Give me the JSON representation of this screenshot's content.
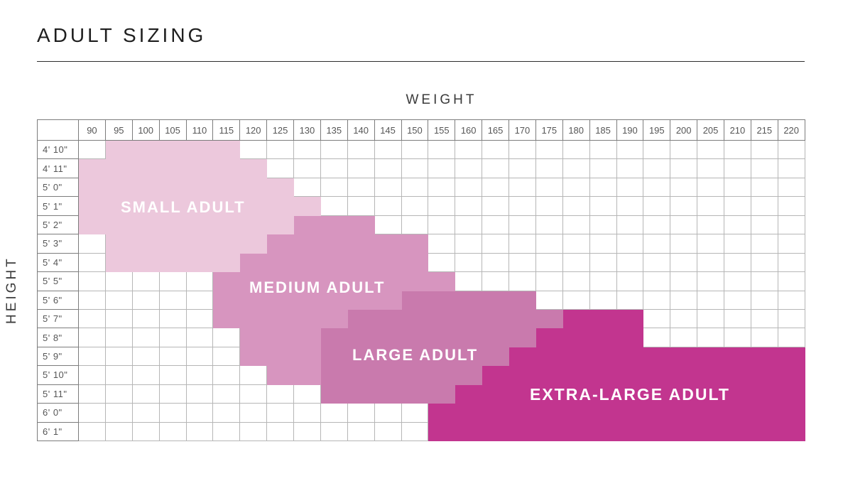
{
  "title": "ADULT SIZING",
  "chart_data": {
    "type": "heatmap",
    "x_axis_label": "WEIGHT",
    "y_axis_label": "HEIGHT",
    "x_categories": [
      90,
      95,
      100,
      105,
      110,
      115,
      120,
      125,
      130,
      135,
      140,
      145,
      150,
      155,
      160,
      165,
      170,
      175,
      180,
      185,
      190,
      195,
      200,
      205,
      210,
      215,
      220
    ],
    "y_categories": [
      "4' 10\"",
      "4' 11\"",
      "5' 0\"",
      "5' 1\"",
      "5' 2\"",
      "5' 3\"",
      "5' 4\"",
      "5' 5\"",
      "5' 6\"",
      "5' 7\"",
      "5' 8\"",
      "5' 9\"",
      "5' 10\"",
      "5' 11\"",
      "6' 0\"",
      "6' 1\""
    ],
    "grid": true,
    "regions": [
      {
        "id": "small",
        "label": "SMALL ADULT",
        "color": "#ecc8dc",
        "cells": {
          "4' 10\"": [
            95,
            115
          ],
          "4' 11\"": [
            90,
            120
          ],
          "5' 0\"": [
            90,
            125
          ],
          "5' 1\"": [
            90,
            130
          ],
          "5' 2\"": [
            90,
            125
          ],
          "5' 3\"": [
            95,
            120
          ],
          "5' 4\"": [
            95,
            115
          ]
        }
      },
      {
        "id": "medium",
        "label": "MEDIUM ADULT",
        "color": "#d795bf",
        "cells": {
          "5' 2\"": [
            130,
            140
          ],
          "5' 3\"": [
            125,
            150
          ],
          "5' 4\"": [
            120,
            150
          ],
          "5' 5\"": [
            115,
            155
          ],
          "5' 6\"": [
            115,
            145
          ],
          "5' 7\"": [
            115,
            135
          ],
          "5' 8\"": [
            120,
            130
          ],
          "5' 9\"": [
            120,
            130
          ],
          "5' 10\"": [
            125,
            130
          ]
        }
      },
      {
        "id": "large",
        "label": "LARGE ADULT",
        "color": "#c97aad",
        "cells": {
          "5' 6\"": [
            150,
            170
          ],
          "5' 7\"": [
            140,
            175
          ],
          "5' 8\"": [
            135,
            170
          ],
          "5' 9\"": [
            135,
            165
          ],
          "5' 10\"": [
            135,
            160
          ],
          "5' 11\"": [
            135,
            155
          ]
        }
      },
      {
        "id": "xlarge",
        "label": "EXTRA-LARGE ADULT",
        "color": "#c2358f",
        "cells": {
          "5' 7\"": [
            180,
            190
          ],
          "5' 8\"": [
            175,
            190
          ],
          "5' 9\"": [
            170,
            220
          ],
          "5' 10\"": [
            165,
            220
          ],
          "5' 11\"": [
            160,
            220
          ],
          "6' 0\"": [
            155,
            220
          ],
          "6' 1\"": [
            155,
            220
          ]
        }
      }
    ]
  }
}
